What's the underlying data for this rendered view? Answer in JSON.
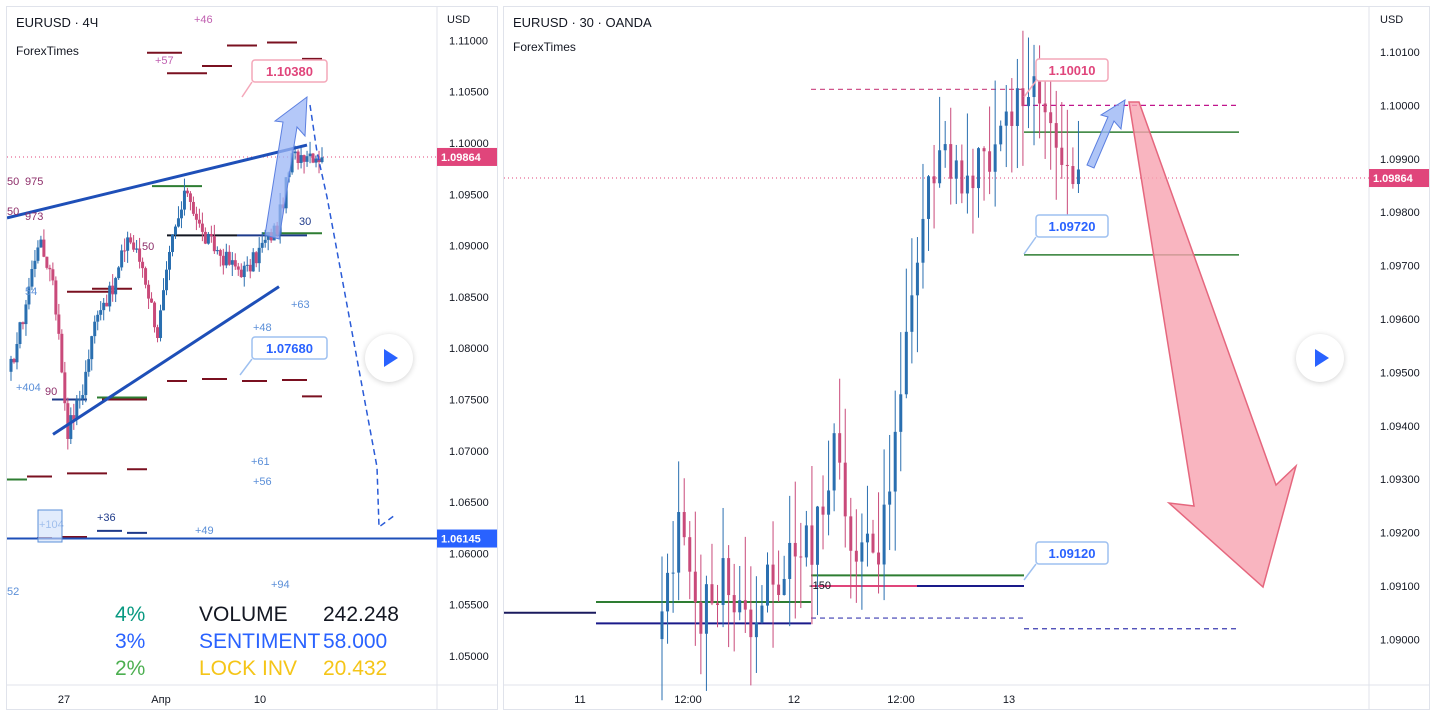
{
  "left_chart": {
    "title": "EURUSD · 4Ч",
    "source": "ForexTimes",
    "currency": "USD",
    "current_price": "1.09864",
    "target_price_tag": "1.06145",
    "callouts": [
      "1.10380",
      "1.07680"
    ],
    "small_labels": [
      "+46",
      "+57",
      "+63",
      "+48",
      "+61",
      "+56",
      "+36",
      "+49",
      "+94",
      "+104",
      "+404",
      "54",
      "52",
      "50",
      "975",
      "50",
      "973",
      "90",
      "30",
      "50"
    ],
    "stats": [
      {
        "pct": "4%",
        "label": "VOLUME",
        "value": "242.248",
        "color": "#089981"
      },
      {
        "pct": "3%",
        "label": "SENTIMENT",
        "value": "58.000",
        "color": "#2962ff"
      },
      {
        "pct": "2%",
        "label": "LOCK INV",
        "value": "20.432",
        "color": "#4caf50"
      }
    ],
    "stat_label_colors": [
      "#131722",
      "#2962ff",
      "#f5c518"
    ],
    "stat_value_colors": [
      "#131722",
      "#2962ff",
      "#f5c518"
    ]
  },
  "right_chart": {
    "title": "EURUSD · 30 · OANDA",
    "source": "ForexTimes",
    "currency": "USD",
    "current_price": "1.09864",
    "callouts": [
      "1.10010",
      "1.09720",
      "1.09120"
    ],
    "small_labels": [
      "-150"
    ]
  },
  "chart_data": [
    {
      "type": "candlestick",
      "title": "EURUSD · 4Ч",
      "ylabel": "USD",
      "ylim": [
        1.046,
        1.112
      ],
      "y_ticks": [
        "1.11000",
        "1.10500",
        "1.10000",
        "1.09500",
        "1.09000",
        "1.08500",
        "1.08000",
        "1.07500",
        "1.07000",
        "1.06500",
        "1.06000",
        "1.05500",
        "1.05000"
      ],
      "x_ticks": [
        "27",
        "Апр",
        "10"
      ],
      "last_price": 1.09864,
      "annotations": [
        {
          "text": "1.10380",
          "value": 1.1038
        },
        {
          "text": "1.07680",
          "value": 1.0768
        },
        {
          "text": "1.06145",
          "value": 1.06145
        }
      ]
    },
    {
      "type": "candlestick",
      "title": "EURUSD · 30 · OANDA",
      "ylabel": "USD",
      "ylim": [
        1.0896,
        1.1015
      ],
      "y_ticks": [
        "1.10100",
        "1.10000",
        "1.09900",
        "1.09800",
        "1.09700",
        "1.09600",
        "1.09500",
        "1.09400",
        "1.09300",
        "1.09200",
        "1.09100",
        "1.09000"
      ],
      "x_ticks": [
        "11",
        "12:00",
        "12",
        "12:00",
        "13"
      ],
      "last_price": 1.09864,
      "annotations": [
        {
          "text": "1.10010",
          "value": 1.1001
        },
        {
          "text": "1.09720",
          "value": 1.0972
        },
        {
          "text": "1.09120",
          "value": 1.0912
        }
      ]
    }
  ],
  "colors": {
    "up": "#2a6fb0",
    "down": "#c94a7a",
    "blue_line": "#1e4fb8",
    "dark_red": "#7a1020",
    "green": "#2e7d32",
    "price_tag": "#e0457b",
    "target_tag": "#2962ff"
  }
}
